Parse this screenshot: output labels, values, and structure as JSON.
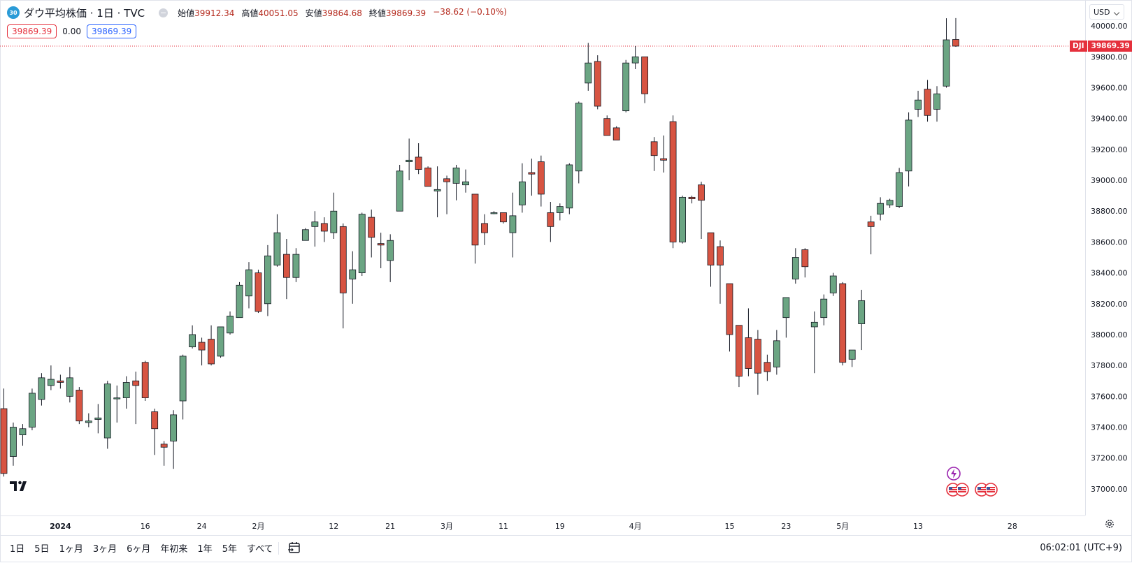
{
  "header": {
    "badge": "30",
    "title": "ダウ平均株価 · 1日 · TVC",
    "ohlc": [
      {
        "label": "始値",
        "value": "39912.34"
      },
      {
        "label": "高値",
        "value": "40051.05"
      },
      {
        "label": "安値",
        "value": "39864.68"
      },
      {
        "label": "終値",
        "value": "39869.39"
      },
      {
        "label": "",
        "value": "−38.62 (−0.10%)"
      }
    ],
    "sell_price": "39869.39",
    "spread": "0.00",
    "buy_price": "39869.39"
  },
  "price_scale": {
    "currency": "USD",
    "last_symbol": "DJI",
    "last_price": "39869.39"
  },
  "bottom_bar": {
    "ranges": [
      "1日",
      "5日",
      "1ヶ月",
      "3ヶ月",
      "6ヶ月",
      "年初来",
      "1年",
      "5年",
      "すべて"
    ],
    "clock": "06:02:01 (UTC+9)"
  },
  "colors": {
    "up": "#6ba583",
    "down": "#d75442",
    "wick": "#131722",
    "last_line": "#e5303c"
  },
  "chart_data": {
    "type": "candlestick",
    "title": "ダウ平均株価 · 1日 · TVC",
    "ylim": [
      36900,
      40150
    ],
    "yticks": [
      37000,
      37200,
      37400,
      37600,
      37800,
      38000,
      38200,
      38400,
      38600,
      38800,
      39000,
      39200,
      39400,
      39600,
      39800,
      40000
    ],
    "ytick_labels": [
      "37000.00",
      "37200.00",
      "37400.00",
      "37600.00",
      "37800.00",
      "38000.00",
      "38200.00",
      "38400.00",
      "38600.00",
      "38800.00",
      "39000.00",
      "39200.00",
      "39400.00",
      "39600.00",
      "39800.00",
      "40000.00"
    ],
    "xtick_labels": [
      {
        "label": "2024",
        "index": 6
      },
      {
        "label": "16",
        "index": 15
      },
      {
        "label": "24",
        "index": 21
      },
      {
        "label": "2月",
        "index": 27
      },
      {
        "label": "12",
        "index": 35
      },
      {
        "label": "21",
        "index": 41
      },
      {
        "label": "3月",
        "index": 47
      },
      {
        "label": "11",
        "index": 53
      },
      {
        "label": "19",
        "index": 59
      },
      {
        "label": "4月",
        "index": 67
      },
      {
        "label": "15",
        "index": 77
      },
      {
        "label": "23",
        "index": 83
      },
      {
        "label": "5月",
        "index": 89
      },
      {
        "label": "13",
        "index": 97
      },
      {
        "label": "28",
        "index": 107
      }
    ],
    "grid": false,
    "last_price": 39869.39,
    "candles": [
      {
        "o": 37520,
        "h": 37650,
        "l": 37080,
        "c": 37100
      },
      {
        "o": 37210,
        "h": 37430,
        "l": 37150,
        "c": 37400
      },
      {
        "o": 37350,
        "h": 37420,
        "l": 37280,
        "c": 37390
      },
      {
        "o": 37400,
        "h": 37650,
        "l": 37380,
        "c": 37620
      },
      {
        "o": 37580,
        "h": 37750,
        "l": 37540,
        "c": 37720
      },
      {
        "o": 37670,
        "h": 37800,
        "l": 37640,
        "c": 37710
      },
      {
        "o": 37700,
        "h": 37740,
        "l": 37650,
        "c": 37690
      },
      {
        "o": 37600,
        "h": 37790,
        "l": 37560,
        "c": 37720
      },
      {
        "o": 37640,
        "h": 37660,
        "l": 37420,
        "c": 37440
      },
      {
        "o": 37430,
        "h": 37490,
        "l": 37400,
        "c": 37440
      },
      {
        "o": 37450,
        "h": 37550,
        "l": 37360,
        "c": 37460
      },
      {
        "o": 37330,
        "h": 37700,
        "l": 37260,
        "c": 37680
      },
      {
        "o": 37590,
        "h": 37670,
        "l": 37430,
        "c": 37590
      },
      {
        "o": 37590,
        "h": 37730,
        "l": 37520,
        "c": 37690
      },
      {
        "o": 37700,
        "h": 37760,
        "l": 37420,
        "c": 37670
      },
      {
        "o": 37820,
        "h": 37830,
        "l": 37570,
        "c": 37590
      },
      {
        "o": 37500,
        "h": 37520,
        "l": 37220,
        "c": 37390
      },
      {
        "o": 37290,
        "h": 37310,
        "l": 37150,
        "c": 37270
      },
      {
        "o": 37310,
        "h": 37510,
        "l": 37130,
        "c": 37480
      },
      {
        "o": 37570,
        "h": 37870,
        "l": 37450,
        "c": 37860
      },
      {
        "o": 37920,
        "h": 38060,
        "l": 37910,
        "c": 38000
      },
      {
        "o": 37950,
        "h": 37980,
        "l": 37800,
        "c": 37900
      },
      {
        "o": 37970,
        "h": 38060,
        "l": 37800,
        "c": 37810
      },
      {
        "o": 37860,
        "h": 38050,
        "l": 37850,
        "c": 38050
      },
      {
        "o": 38010,
        "h": 38150,
        "l": 38000,
        "c": 38120
      },
      {
        "o": 38110,
        "h": 38340,
        "l": 38110,
        "c": 38320
      },
      {
        "o": 38250,
        "h": 38470,
        "l": 38170,
        "c": 38420
      },
      {
        "o": 38400,
        "h": 38420,
        "l": 38140,
        "c": 38150
      },
      {
        "o": 38200,
        "h": 38580,
        "l": 38120,
        "c": 38510
      },
      {
        "o": 38450,
        "h": 38780,
        "l": 38440,
        "c": 38660
      },
      {
        "o": 38520,
        "h": 38620,
        "l": 38230,
        "c": 38370
      },
      {
        "o": 38370,
        "h": 38560,
        "l": 38340,
        "c": 38520
      },
      {
        "o": 38610,
        "h": 38690,
        "l": 38610,
        "c": 38680
      },
      {
        "o": 38700,
        "h": 38800,
        "l": 38570,
        "c": 38730
      },
      {
        "o": 38720,
        "h": 38760,
        "l": 38600,
        "c": 38670
      },
      {
        "o": 38660,
        "h": 38920,
        "l": 38620,
        "c": 38800
      },
      {
        "o": 38700,
        "h": 38720,
        "l": 38040,
        "c": 38270
      },
      {
        "o": 38360,
        "h": 38540,
        "l": 38200,
        "c": 38420
      },
      {
        "o": 38400,
        "h": 38790,
        "l": 38380,
        "c": 38780
      },
      {
        "o": 38760,
        "h": 38810,
        "l": 38500,
        "c": 38630
      },
      {
        "o": 38590,
        "h": 38660,
        "l": 38430,
        "c": 38580
      },
      {
        "o": 38480,
        "h": 38650,
        "l": 38340,
        "c": 38610
      },
      {
        "o": 38800,
        "h": 39100,
        "l": 38800,
        "c": 39060
      },
      {
        "o": 39120,
        "h": 39270,
        "l": 39000,
        "c": 39130
      },
      {
        "o": 39150,
        "h": 39240,
        "l": 39040,
        "c": 39070
      },
      {
        "o": 39080,
        "h": 39090,
        "l": 38990,
        "c": 38960
      },
      {
        "o": 38930,
        "h": 39090,
        "l": 38760,
        "c": 38940
      },
      {
        "o": 39010,
        "h": 39030,
        "l": 38780,
        "c": 38990
      },
      {
        "o": 38980,
        "h": 39100,
        "l": 38870,
        "c": 39080
      },
      {
        "o": 38970,
        "h": 39070,
        "l": 38920,
        "c": 38990
      },
      {
        "o": 38910,
        "h": 38900,
        "l": 38460,
        "c": 38580
      },
      {
        "o": 38720,
        "h": 38780,
        "l": 38580,
        "c": 38660
      },
      {
        "o": 38790,
        "h": 38800,
        "l": 38780,
        "c": 38790
      },
      {
        "o": 38790,
        "h": 38790,
        "l": 38720,
        "c": 38730
      },
      {
        "o": 38660,
        "h": 38920,
        "l": 38500,
        "c": 38770
      },
      {
        "o": 38840,
        "h": 39110,
        "l": 38790,
        "c": 38990
      },
      {
        "o": 39050,
        "h": 39140,
        "l": 38900,
        "c": 39040
      },
      {
        "o": 39120,
        "h": 39160,
        "l": 38830,
        "c": 38910
      },
      {
        "o": 38790,
        "h": 38860,
        "l": 38600,
        "c": 38700
      },
      {
        "o": 38790,
        "h": 38850,
        "l": 38740,
        "c": 38830
      },
      {
        "o": 38820,
        "h": 39110,
        "l": 38780,
        "c": 39100
      },
      {
        "o": 39060,
        "h": 39510,
        "l": 38980,
        "c": 39500
      },
      {
        "o": 39630,
        "h": 39890,
        "l": 39580,
        "c": 39760
      },
      {
        "o": 39770,
        "h": 39810,
        "l": 39460,
        "c": 39480
      },
      {
        "o": 39400,
        "h": 39420,
        "l": 39300,
        "c": 39290
      },
      {
        "o": 39340,
        "h": 39350,
        "l": 39270,
        "c": 39260
      },
      {
        "o": 39450,
        "h": 39780,
        "l": 39440,
        "c": 39760
      },
      {
        "o": 39760,
        "h": 39870,
        "l": 39720,
        "c": 39800
      },
      {
        "o": 39800,
        "h": 39800,
        "l": 39500,
        "c": 39560
      },
      {
        "o": 39250,
        "h": 39280,
        "l": 39060,
        "c": 39160
      },
      {
        "o": 39140,
        "h": 39290,
        "l": 39050,
        "c": 39130
      },
      {
        "o": 39380,
        "h": 39420,
        "l": 38560,
        "c": 38600
      },
      {
        "o": 38600,
        "h": 38900,
        "l": 38590,
        "c": 38890
      },
      {
        "o": 38890,
        "h": 38900,
        "l": 38850,
        "c": 38880
      },
      {
        "o": 38970,
        "h": 38990,
        "l": 38620,
        "c": 38870
      },
      {
        "o": 38660,
        "h": 38660,
        "l": 38310,
        "c": 38450
      },
      {
        "o": 38570,
        "h": 38610,
        "l": 38200,
        "c": 38450
      },
      {
        "o": 38330,
        "h": 38330,
        "l": 37890,
        "c": 38000
      },
      {
        "o": 38060,
        "h": 38060,
        "l": 37660,
        "c": 37730
      },
      {
        "o": 37980,
        "h": 38170,
        "l": 37730,
        "c": 37780
      },
      {
        "o": 37970,
        "h": 38030,
        "l": 37610,
        "c": 37750
      },
      {
        "o": 37820,
        "h": 37870,
        "l": 37700,
        "c": 37760
      },
      {
        "o": 37790,
        "h": 38030,
        "l": 37740,
        "c": 37960
      },
      {
        "o": 38110,
        "h": 38230,
        "l": 37980,
        "c": 38240
      },
      {
        "o": 38360,
        "h": 38560,
        "l": 38330,
        "c": 38500
      },
      {
        "o": 38550,
        "h": 38560,
        "l": 38370,
        "c": 38440
      },
      {
        "o": 38050,
        "h": 38150,
        "l": 37750,
        "c": 38080
      },
      {
        "o": 38110,
        "h": 38260,
        "l": 38060,
        "c": 38230
      },
      {
        "o": 38270,
        "h": 38400,
        "l": 38250,
        "c": 38380
      },
      {
        "o": 38330,
        "h": 38340,
        "l": 37800,
        "c": 37820
      },
      {
        "o": 37840,
        "h": 37890,
        "l": 37790,
        "c": 37900
      },
      {
        "o": 38070,
        "h": 38290,
        "l": 37900,
        "c": 38220
      },
      {
        "o": 38730,
        "h": 38770,
        "l": 38520,
        "c": 38700
      },
      {
        "o": 38780,
        "h": 38890,
        "l": 38740,
        "c": 38850
      },
      {
        "o": 38840,
        "h": 38880,
        "l": 38820,
        "c": 38870
      },
      {
        "o": 38830,
        "h": 39080,
        "l": 38820,
        "c": 39050
      },
      {
        "o": 39060,
        "h": 39440,
        "l": 38960,
        "c": 39390
      },
      {
        "o": 39460,
        "h": 39580,
        "l": 39410,
        "c": 39520
      },
      {
        "o": 39590,
        "h": 39650,
        "l": 39380,
        "c": 39420
      },
      {
        "o": 39460,
        "h": 39610,
        "l": 39380,
        "c": 39560
      },
      {
        "o": 39610,
        "h": 40050,
        "l": 39600,
        "c": 39910
      },
      {
        "o": 39912.34,
        "h": 40051.05,
        "l": 39864.68,
        "c": 39869.39
      }
    ]
  }
}
